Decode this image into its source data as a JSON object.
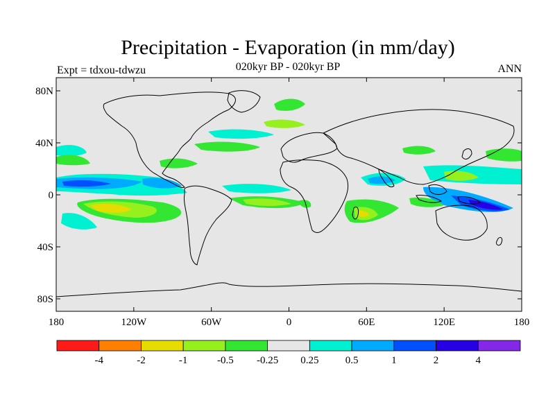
{
  "title": "Precipitation - Evaporation (in mm/day)",
  "subtitle": "020kyr BP - 020kyr BP",
  "left_label": "Expt = tdxou-tdwzu",
  "right_label": "ANN",
  "map": {
    "lat_ticks": [
      "80N",
      "40N",
      "0",
      "40S",
      "80S"
    ],
    "lon_ticks": [
      "180",
      "120W",
      "60W",
      "0",
      "60E",
      "120E",
      "180"
    ],
    "background_color": "#e6e6e6",
    "coastline_color": "#000000"
  },
  "colorbar": {
    "colors": [
      "#ff1a1a",
      "#ff8000",
      "#e6dc00",
      "#96f01e",
      "#32e632",
      "#e6e6e6",
      "#00f0d2",
      "#00aaff",
      "#0050ff",
      "#2800e6",
      "#8228e6"
    ],
    "labels": [
      "-4",
      "-2",
      "-1",
      "-0.5",
      "-0.25",
      "0.25",
      "0.5",
      "1",
      "2",
      "4"
    ]
  }
}
